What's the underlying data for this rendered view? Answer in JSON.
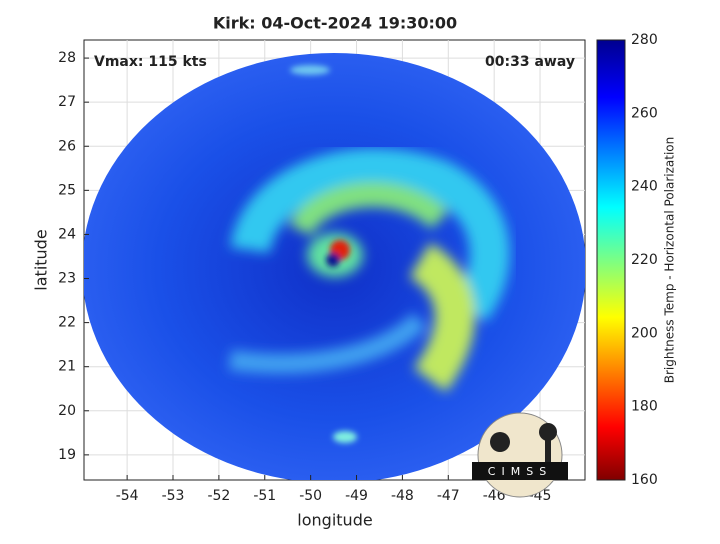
{
  "chart_data": {
    "type": "image",
    "title": "Kirk: 04-Oct-2024 19:30:00",
    "annotations": [
      "Vmax: 115 kts",
      "00:33 away"
    ],
    "xlabel": "longitude",
    "ylabel": "latitude",
    "xlim": [
      -54.94,
      -44.02
    ],
    "xticks": [
      -54,
      -53,
      -52,
      -51,
      -50,
      -49,
      -48,
      -47,
      -46,
      -45
    ],
    "ylim": [
      18.43,
      28.41
    ],
    "yticks": [
      19,
      20,
      21,
      22,
      23,
      24,
      25,
      26,
      27,
      28
    ],
    "grid": true,
    "colorbar": {
      "label": "Brightness Temp - Horizontal Polarization",
      "clim": [
        160,
        280
      ],
      "ticks": [
        160,
        180,
        200,
        220,
        240,
        260,
        280
      ]
    },
    "logo": "CIMSS"
  }
}
